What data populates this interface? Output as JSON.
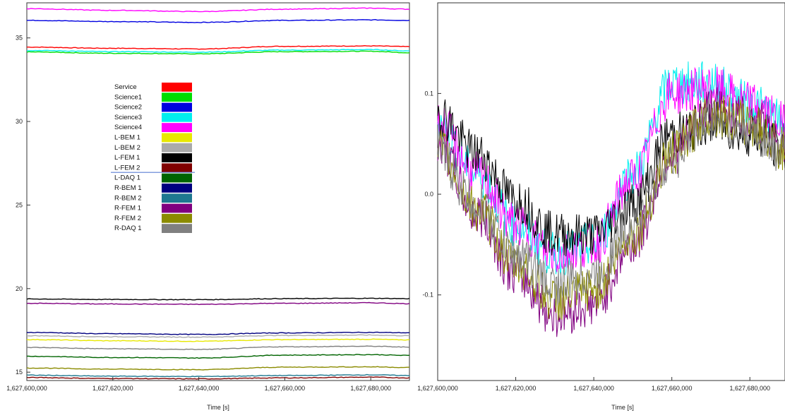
{
  "chart_data": [
    {
      "type": "line",
      "xlabel": "Time [s]",
      "ylabel": "",
      "xlim": [
        1627600000,
        1627689000
      ],
      "ylim": [
        14.5,
        37.1
      ],
      "xticks": [
        1627600000,
        1627620000,
        1627640000,
        1627660000,
        1627680000
      ],
      "xtick_labels": [
        "1,627,600,000",
        "1,627,620,000",
        "1,627,640,000",
        "1,627,660,000",
        "1,627,680,000"
      ],
      "yticks": [
        15,
        20,
        25,
        30,
        35
      ],
      "ytick_labels": [
        "15",
        "20",
        "25",
        "30",
        "35"
      ],
      "grid": false,
      "legend_position": "upper-left-center",
      "x": [
        1627600000,
        1627620000,
        1627640000,
        1627660000,
        1627680000,
        1627689000
      ],
      "series": [
        {
          "name": "Service",
          "color": "#ff0000",
          "values": [
            34.45,
            34.38,
            34.34,
            34.5,
            34.52,
            34.48
          ]
        },
        {
          "name": "Science1",
          "color": "#00dd00",
          "values": [
            34.16,
            34.08,
            34.05,
            34.18,
            34.2,
            34.12
          ]
        },
        {
          "name": "Science2",
          "color": "#0000e0",
          "values": [
            36.05,
            35.98,
            35.93,
            36.05,
            36.08,
            36.05
          ]
        },
        {
          "name": "Science3",
          "color": "#00eeee",
          "values": [
            34.25,
            34.18,
            34.15,
            34.27,
            34.3,
            34.22
          ]
        },
        {
          "name": "Science4",
          "color": "#ff00ff",
          "values": [
            36.75,
            36.65,
            36.58,
            36.72,
            36.78,
            36.72
          ]
        },
        {
          "name": "L-BEM 1",
          "color": "#e8e800",
          "values": [
            16.95,
            16.88,
            16.85,
            16.95,
            16.97,
            16.93
          ]
        },
        {
          "name": "L-BEM 2",
          "color": "#aaaaaa",
          "values": [
            17.18,
            17.12,
            17.1,
            17.2,
            17.22,
            17.18
          ]
        },
        {
          "name": "L-FEM 1",
          "color": "#000000",
          "values": [
            19.38,
            19.35,
            19.34,
            19.4,
            19.42,
            19.4
          ]
        },
        {
          "name": "L-FEM 2",
          "color": "#800000",
          "values": [
            14.68,
            14.62,
            14.6,
            14.66,
            14.7,
            14.66
          ]
        },
        {
          "name": "L-DAQ 1",
          "color": "#006400",
          "values": [
            15.95,
            15.88,
            15.85,
            16.02,
            16.05,
            16.0
          ]
        },
        {
          "name": "R-BEM 1",
          "color": "#000080",
          "values": [
            17.38,
            17.3,
            17.26,
            17.35,
            17.38,
            17.36
          ]
        },
        {
          "name": "R-BEM 2",
          "color": "#1e7890",
          "values": [
            14.82,
            14.76,
            14.74,
            14.8,
            14.84,
            14.8
          ]
        },
        {
          "name": "R-FEM 1",
          "color": "#800080",
          "values": [
            19.12,
            19.08,
            19.06,
            19.12,
            19.15,
            19.1
          ]
        },
        {
          "name": "R-FEM 2",
          "color": "#8b8b00",
          "values": [
            15.25,
            15.18,
            15.15,
            15.3,
            15.32,
            15.28
          ]
        },
        {
          "name": "R-DAQ 1",
          "color": "#808080",
          "values": [
            16.48,
            16.4,
            16.36,
            16.52,
            16.55,
            16.5
          ]
        }
      ]
    },
    {
      "type": "line",
      "xlabel": "Time [s]",
      "ylabel": "",
      "xlim": [
        1627600000,
        1627689000
      ],
      "ylim": [
        -0.185,
        0.19
      ],
      "xticks": [
        1627600000,
        1627620000,
        1627640000,
        1627660000,
        1627680000
      ],
      "xtick_labels": [
        "1,627,600,000",
        "1,627,620,000",
        "1,627,640,000",
        "1,627,660,000",
        "1,627,680,000"
      ],
      "yticks": [
        -0.1,
        0.0,
        0.1
      ],
      "ytick_labels": [
        "-0.1",
        "0.0",
        "0.1"
      ],
      "grid": false,
      "x": [
        1627600000,
        1627610000,
        1627620000,
        1627630000,
        1627640000,
        1627650000,
        1627660000,
        1627670000,
        1627680000,
        1627689000
      ],
      "series": [
        {
          "color": "#00eeee",
          "values": [
            0.07,
            0.02,
            -0.03,
            -0.06,
            -0.05,
            0.02,
            0.11,
            0.11,
            0.09,
            0.07
          ]
        },
        {
          "color": "#ff00ff",
          "values": [
            0.07,
            0.02,
            -0.03,
            -0.06,
            -0.05,
            0.015,
            0.1,
            0.105,
            0.09,
            0.07
          ]
        },
        {
          "color": "#000000",
          "values": [
            0.08,
            0.04,
            -0.005,
            -0.04,
            -0.04,
            -0.01,
            0.06,
            0.07,
            0.06,
            0.045
          ]
        },
        {
          "color": "#800080",
          "values": [
            0.05,
            -0.02,
            -0.08,
            -0.12,
            -0.11,
            -0.05,
            0.04,
            0.085,
            0.075,
            0.05
          ]
        },
        {
          "color": "#8b8b00",
          "values": [
            0.045,
            -0.015,
            -0.07,
            -0.105,
            -0.095,
            -0.04,
            0.04,
            0.08,
            0.07,
            0.045
          ]
        },
        {
          "color": "#808080",
          "values": [
            0.04,
            -0.01,
            -0.06,
            -0.09,
            -0.08,
            -0.03,
            0.035,
            0.075,
            0.065,
            0.04
          ]
        }
      ]
    }
  ]
}
